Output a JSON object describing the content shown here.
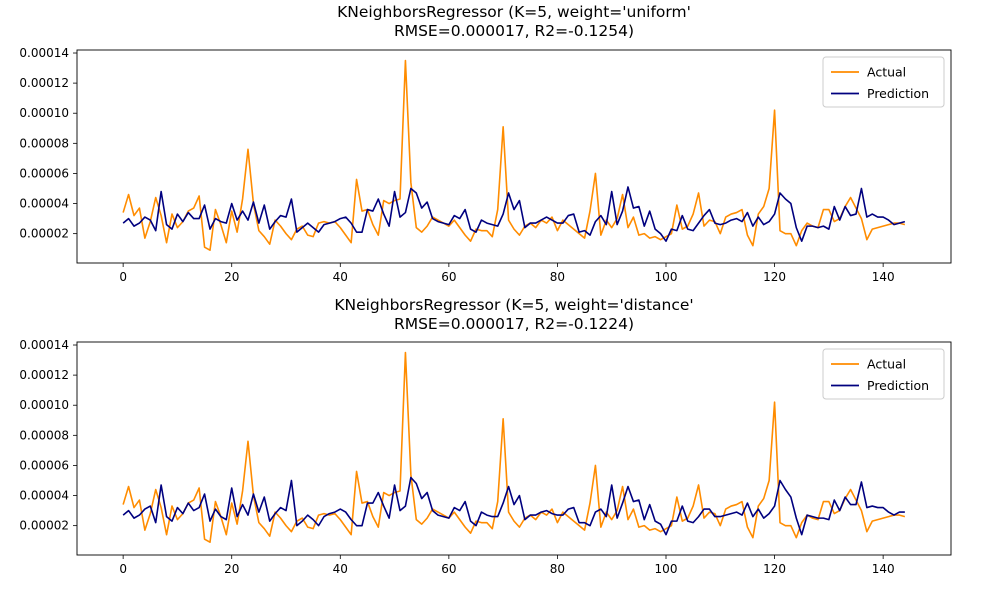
{
  "colors": {
    "actual": "#ff8c00",
    "prediction": "#00007f",
    "background": "#ffffff",
    "axes": "#000000"
  },
  "legend_placement": "top-right",
  "chart_data": [
    {
      "type": "line",
      "title": "KNeighborsRegressor (K=5, weight='uniform'",
      "subtitle": "RMSE=0.000017, R2=-0.1254)",
      "xlabel": "",
      "ylabel": "",
      "xlim": [
        -8.5,
        152.5
      ],
      "ylim": [
        5e-07,
        0.000142
      ],
      "xticks": [
        0,
        20,
        40,
        60,
        80,
        100,
        120,
        140
      ],
      "xtick_labels": [
        "0",
        "20",
        "40",
        "60",
        "80",
        "100",
        "120",
        "140"
      ],
      "yticks": [
        2e-05,
        4e-05,
        6e-05,
        8e-05,
        0.0001,
        0.00012,
        0.00014
      ],
      "ytick_labels": [
        "0.00002",
        "0.00004",
        "0.00006",
        "0.00008",
        "0.00010",
        "0.00012",
        "0.00014"
      ],
      "grid": false,
      "legend": [
        "Actual",
        "Prediction"
      ],
      "series": [
        {
          "name": "Actual",
          "color": "#ff8c00",
          "values": [
            3.4e-05,
            4.6e-05,
            3.2e-05,
            3.7e-05,
            1.7e-05,
            2.8e-05,
            4.4e-05,
            3.2e-05,
            1.4e-05,
            3.3e-05,
            2.4e-05,
            2.8e-05,
            3.5e-05,
            3.7e-05,
            4.5e-05,
            1.1e-05,
            9e-06,
            3.6e-05,
            2.6e-05,
            1.4e-05,
            3.5e-05,
            2.1e-05,
            4.3e-05,
            7.6e-05,
            4e-05,
            2.2e-05,
            1.8e-05,
            1.3e-05,
            2.9e-05,
            2.5e-05,
            2e-05,
            1.6e-05,
            2.3e-05,
            2.5e-05,
            1.9e-05,
            1.8e-05,
            2.7e-05,
            2.8e-05,
            2.7e-05,
            2.8e-05,
            2.4e-05,
            1.9e-05,
            1.4e-05,
            5.6e-05,
            3.5e-05,
            3.6e-05,
            2.6e-05,
            1.9e-05,
            4.2e-05,
            4e-05,
            4.2e-05,
            4.3e-05,
            0.000135,
            5.4e-05,
            2.4e-05,
            2.1e-05,
            2.5e-05,
            3.1e-05,
            2.9e-05,
            2.7e-05,
            2.5e-05,
            2.9e-05,
            2.4e-05,
            1.9e-05,
            1.5e-05,
            2.3e-05,
            2.2e-05,
            2.2e-05,
            1.8e-05,
            3.6e-05,
            9.1e-05,
            2.9e-05,
            2.3e-05,
            1.9e-05,
            2.5e-05,
            2.7e-05,
            2.4e-05,
            2.9e-05,
            2.7e-05,
            3.1e-05,
            2.2e-05,
            2.9e-05,
            2.6e-05,
            2.3e-05,
            2e-05,
            1.7e-05,
            3.5e-05,
            6e-05,
            1.9e-05,
            2.9e-05,
            2.4e-05,
            3e-05,
            4.6e-05,
            2.4e-05,
            3.1e-05,
            1.9e-05,
            2e-05,
            1.7e-05,
            1.8e-05,
            1.6e-05,
            1.8e-05,
            2e-05,
            3.9e-05,
            2.3e-05,
            2.5e-05,
            3.3e-05,
            4.7e-05,
            2.5e-05,
            2.9e-05,
            2.8e-05,
            2e-05,
            3.1e-05,
            3.3e-05,
            3.4e-05,
            3.6e-05,
            1.9e-05,
            1.2e-05,
            3.3e-05,
            3.8e-05,
            5e-05,
            0.000102,
            2.2e-05,
            2e-05,
            2e-05,
            1.2e-05,
            2.2e-05,
            2.7e-05,
            2.5e-05,
            2.4e-05,
            3.6e-05,
            3.6e-05,
            2.8e-05,
            3e-05,
            3.8e-05,
            4.4e-05,
            3.7e-05,
            3e-05,
            1.6e-05,
            2.3e-05,
            2.4e-05,
            2.5e-05,
            2.6e-05,
            2.7e-05,
            2.7e-05,
            2.6e-05
          ]
        },
        {
          "name": "Prediction",
          "color": "#00007f",
          "values": [
            2.7e-05,
            3e-05,
            2.5e-05,
            2.7e-05,
            3.1e-05,
            2.9e-05,
            2.2e-05,
            4.8e-05,
            2.6e-05,
            2.3e-05,
            3.3e-05,
            2.8e-05,
            3.4e-05,
            3e-05,
            3e-05,
            3.9e-05,
            2.3e-05,
            3e-05,
            2.8e-05,
            2.7e-05,
            4e-05,
            2.9e-05,
            3.5e-05,
            2.9e-05,
            4.1e-05,
            2.7e-05,
            3.9e-05,
            2.3e-05,
            2.8e-05,
            3.2e-05,
            3.1e-05,
            4.3e-05,
            2.1e-05,
            2.4e-05,
            2.7e-05,
            2.4e-05,
            2.1e-05,
            2.6e-05,
            2.7e-05,
            2.8e-05,
            3e-05,
            3.1e-05,
            2.7e-05,
            2.1e-05,
            2.1e-05,
            3.6e-05,
            3.5e-05,
            4.3e-05,
            3.3e-05,
            2.5e-05,
            4.8e-05,
            3.1e-05,
            3.4e-05,
            5e-05,
            4.7e-05,
            3.7e-05,
            4.1e-05,
            3e-05,
            2.8e-05,
            2.7e-05,
            2.6e-05,
            3.2e-05,
            3e-05,
            3.6e-05,
            2.3e-05,
            2.1e-05,
            2.9e-05,
            2.7e-05,
            2.6e-05,
            2.5e-05,
            3.3e-05,
            4.7e-05,
            3.6e-05,
            4.2e-05,
            2.4e-05,
            2.7e-05,
            2.7e-05,
            2.9e-05,
            3.1e-05,
            2.9e-05,
            2.7e-05,
            2.7e-05,
            3.2e-05,
            3.3e-05,
            2.1e-05,
            2.2e-05,
            1.9e-05,
            2.8e-05,
            3.2e-05,
            2.6e-05,
            4.8e-05,
            2.6e-05,
            3.5e-05,
            5.1e-05,
            3.7e-05,
            3.8e-05,
            2.5e-05,
            3.5e-05,
            2.3e-05,
            2e-05,
            1.5e-05,
            2.3e-05,
            2.2e-05,
            3.2e-05,
            2.3e-05,
            2.2e-05,
            2.7e-05,
            3.2e-05,
            3.6e-05,
            2.7e-05,
            2.6e-05,
            2.7e-05,
            2.9e-05,
            3e-05,
            2.8e-05,
            3.4e-05,
            2.5e-05,
            3.1e-05,
            2.6e-05,
            2.8e-05,
            3.3e-05,
            4.7e-05,
            4.3e-05,
            4e-05,
            2.4e-05,
            1.5e-05,
            2.5e-05,
            2.5e-05,
            2.4e-05,
            2.5e-05,
            2.3e-05,
            3.8e-05,
            2.9e-05,
            3.8e-05,
            3.2e-05,
            3.3e-05,
            5e-05,
            3.1e-05,
            3.3e-05,
            3.1e-05,
            3.1e-05,
            2.9e-05,
            2.6e-05,
            2.7e-05,
            2.8e-05
          ]
        }
      ]
    },
    {
      "type": "line",
      "title": "KNeighborsRegressor (K=5, weight='distance'",
      "subtitle": "RMSE=0.000017, R2=-0.1224)",
      "xlabel": "",
      "ylabel": "",
      "xlim": [
        -8.5,
        152.5
      ],
      "ylim": [
        5e-07,
        0.000142
      ],
      "xticks": [
        0,
        20,
        40,
        60,
        80,
        100,
        120,
        140
      ],
      "xtick_labels": [
        "0",
        "20",
        "40",
        "60",
        "80",
        "100",
        "120",
        "140"
      ],
      "yticks": [
        2e-05,
        4e-05,
        6e-05,
        8e-05,
        0.0001,
        0.00012,
        0.00014
      ],
      "ytick_labels": [
        "0.00002",
        "0.00004",
        "0.00006",
        "0.00008",
        "0.00010",
        "0.00012",
        "0.00014"
      ],
      "grid": false,
      "legend": [
        "Actual",
        "Prediction"
      ],
      "series": [
        {
          "name": "Actual",
          "color": "#ff8c00",
          "values": [
            3.4e-05,
            4.6e-05,
            3.2e-05,
            3.7e-05,
            1.7e-05,
            2.8e-05,
            4.4e-05,
            3.2e-05,
            1.4e-05,
            3.3e-05,
            2.4e-05,
            2.8e-05,
            3.5e-05,
            3.7e-05,
            4.5e-05,
            1.1e-05,
            9e-06,
            3.6e-05,
            2.6e-05,
            1.4e-05,
            3.5e-05,
            2.1e-05,
            4.3e-05,
            7.6e-05,
            4e-05,
            2.2e-05,
            1.8e-05,
            1.3e-05,
            2.9e-05,
            2.5e-05,
            2e-05,
            1.6e-05,
            2.3e-05,
            2.5e-05,
            1.9e-05,
            1.8e-05,
            2.7e-05,
            2.8e-05,
            2.7e-05,
            2.8e-05,
            2.4e-05,
            1.9e-05,
            1.4e-05,
            5.6e-05,
            3.5e-05,
            3.6e-05,
            2.6e-05,
            1.9e-05,
            4.2e-05,
            4e-05,
            4.2e-05,
            4.3e-05,
            0.000135,
            5.4e-05,
            2.4e-05,
            2.1e-05,
            2.5e-05,
            3.1e-05,
            2.9e-05,
            2.7e-05,
            2.5e-05,
            2.9e-05,
            2.4e-05,
            1.9e-05,
            1.5e-05,
            2.3e-05,
            2.2e-05,
            2.2e-05,
            1.8e-05,
            3.6e-05,
            9.1e-05,
            2.9e-05,
            2.3e-05,
            1.9e-05,
            2.5e-05,
            2.7e-05,
            2.4e-05,
            2.9e-05,
            2.7e-05,
            3.1e-05,
            2.2e-05,
            2.9e-05,
            2.6e-05,
            2.3e-05,
            2e-05,
            1.7e-05,
            3.5e-05,
            6e-05,
            1.9e-05,
            2.9e-05,
            2.4e-05,
            3e-05,
            4.6e-05,
            2.4e-05,
            3.1e-05,
            1.9e-05,
            2e-05,
            1.7e-05,
            1.8e-05,
            1.6e-05,
            1.8e-05,
            2e-05,
            3.9e-05,
            2.3e-05,
            2.5e-05,
            3.3e-05,
            4.7e-05,
            2.5e-05,
            2.9e-05,
            2.8e-05,
            2e-05,
            3.1e-05,
            3.3e-05,
            3.4e-05,
            3.6e-05,
            1.9e-05,
            1.2e-05,
            3.3e-05,
            3.8e-05,
            5e-05,
            0.000102,
            2.2e-05,
            2e-05,
            2e-05,
            1.2e-05,
            2.2e-05,
            2.7e-05,
            2.5e-05,
            2.4e-05,
            3.6e-05,
            3.6e-05,
            2.8e-05,
            3e-05,
            3.8e-05,
            4.4e-05,
            3.7e-05,
            3e-05,
            1.6e-05,
            2.3e-05,
            2.4e-05,
            2.5e-05,
            2.6e-05,
            2.7e-05,
            2.7e-05,
            2.6e-05
          ]
        },
        {
          "name": "Prediction",
          "color": "#00007f",
          "values": [
            2.7e-05,
            3e-05,
            2.5e-05,
            2.7e-05,
            3.1e-05,
            3.3e-05,
            2.2e-05,
            4.7e-05,
            2.6e-05,
            2.3e-05,
            3.2e-05,
            2.8e-05,
            3.5e-05,
            3e-05,
            3.2e-05,
            4.1e-05,
            2.3e-05,
            3.1e-05,
            2.6e-05,
            2.4e-05,
            4.5e-05,
            2.6e-05,
            3.4e-05,
            2.7e-05,
            4.1e-05,
            2.9e-05,
            3.9e-05,
            2.3e-05,
            2.8e-05,
            3.2e-05,
            3e-05,
            5e-05,
            2e-05,
            2.3e-05,
            2.7e-05,
            2.4e-05,
            2e-05,
            2.6e-05,
            2.8e-05,
            2.9e-05,
            3.1e-05,
            2.9e-05,
            2.4e-05,
            2e-05,
            2e-05,
            3.5e-05,
            3.5e-05,
            4.2e-05,
            3.3e-05,
            2.5e-05,
            4.7e-05,
            3e-05,
            3.3e-05,
            5.2e-05,
            4.8e-05,
            3.8e-05,
            4.2e-05,
            3e-05,
            2.7e-05,
            2.6e-05,
            2.5e-05,
            3.2e-05,
            3e-05,
            3.6e-05,
            2.3e-05,
            2e-05,
            2.9e-05,
            2.7e-05,
            2.6e-05,
            2.6e-05,
            3.5e-05,
            4.6e-05,
            3.4e-05,
            4e-05,
            2.4e-05,
            2.7e-05,
            2.7e-05,
            2.9e-05,
            3e-05,
            2.8e-05,
            2.7e-05,
            2.7e-05,
            3.1e-05,
            3.2e-05,
            2.2e-05,
            2.2e-05,
            2e-05,
            2.9e-05,
            3.1e-05,
            2.6e-05,
            4.7e-05,
            2.5e-05,
            3.5e-05,
            4.6e-05,
            3.6e-05,
            3.7e-05,
            2.4e-05,
            3.4e-05,
            2.3e-05,
            2.1e-05,
            1.4e-05,
            2.3e-05,
            2.3e-05,
            3.3e-05,
            2.3e-05,
            2.2e-05,
            2.6e-05,
            3.1e-05,
            3.1e-05,
            2.6e-05,
            2.6e-05,
            2.7e-05,
            2.8e-05,
            2.9e-05,
            2.7e-05,
            3.5e-05,
            2.6e-05,
            3.1e-05,
            2.5e-05,
            2.8e-05,
            3.3e-05,
            5e-05,
            4.4e-05,
            3.9e-05,
            2.5e-05,
            1.4e-05,
            2.7e-05,
            2.6e-05,
            2.5e-05,
            2.5e-05,
            2.4e-05,
            3.7e-05,
            3e-05,
            3.9e-05,
            3.4e-05,
            3.4e-05,
            4.9e-05,
            3.2e-05,
            3.3e-05,
            3.2e-05,
            3.2e-05,
            2.9e-05,
            2.7e-05,
            2.9e-05,
            2.9e-05
          ]
        }
      ]
    }
  ]
}
